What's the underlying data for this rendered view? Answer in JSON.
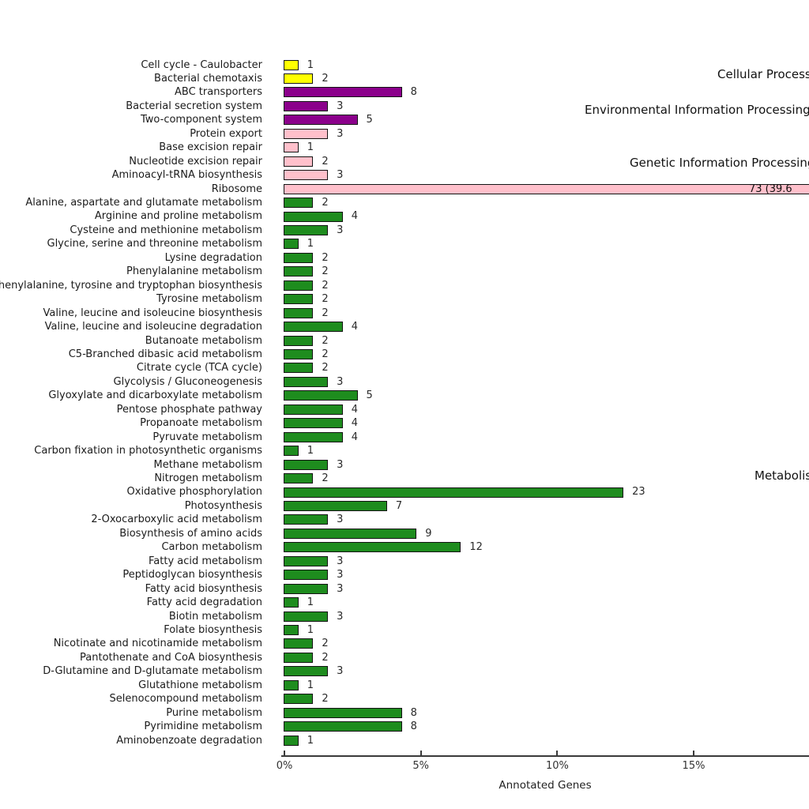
{
  "chart_data": {
    "type": "bar",
    "orientation": "horizontal",
    "title": "",
    "xlabel": "Annotated Genes",
    "x_ticks": [
      "0%",
      "5%",
      "10%",
      "15%"
    ],
    "x_tick_values": [
      0,
      5,
      10,
      15
    ],
    "xlim_visible": [
      0,
      18.6
    ],
    "grid": false,
    "legend_position": "right-edge-clipped",
    "groups": [
      {
        "name": "Cellular Processes",
        "color": "#FFFF00"
      },
      {
        "name": "Environmental Information Processing",
        "color": "#8B008B"
      },
      {
        "name": "Genetic Information Processing",
        "color": "#FFC0CB"
      },
      {
        "name": "Metabolism",
        "color": "#1E8C1E"
      }
    ],
    "rows": [
      {
        "label": "Cell cycle - Caulobacter",
        "count": 1,
        "group": 0
      },
      {
        "label": "Bacterial chemotaxis",
        "count": 2,
        "group": 0
      },
      {
        "label": "ABC transporters",
        "count": 8,
        "group": 1
      },
      {
        "label": "Bacterial secretion system",
        "count": 3,
        "group": 1
      },
      {
        "label": "Two-component system",
        "count": 5,
        "group": 1
      },
      {
        "label": "Protein export",
        "count": 3,
        "group": 2
      },
      {
        "label": "Base excision repair",
        "count": 1,
        "group": 2
      },
      {
        "label": "Nucleotide excision repair",
        "count": 2,
        "group": 2
      },
      {
        "label": "Aminoacyl-tRNA biosynthesis",
        "count": 3,
        "group": 2
      },
      {
        "label": "Ribosome",
        "count": 73,
        "group": 2,
        "value_label": "73 (39.6"
      },
      {
        "label": "Alanine, aspartate and glutamate metabolism",
        "count": 2,
        "group": 3
      },
      {
        "label": "Arginine and proline metabolism",
        "count": 4,
        "group": 3
      },
      {
        "label": "Cysteine and methionine metabolism",
        "count": 3,
        "group": 3
      },
      {
        "label": "Glycine, serine and threonine metabolism",
        "count": 1,
        "group": 3
      },
      {
        "label": "Lysine degradation",
        "count": 2,
        "group": 3
      },
      {
        "label": "Phenylalanine metabolism",
        "count": 2,
        "group": 3
      },
      {
        "label": "Phenylalanine, tyrosine and tryptophan biosynthesis",
        "count": 2,
        "group": 3
      },
      {
        "label": "Tyrosine metabolism",
        "count": 2,
        "group": 3
      },
      {
        "label": "Valine, leucine and isoleucine biosynthesis",
        "count": 2,
        "group": 3
      },
      {
        "label": "Valine, leucine and isoleucine degradation",
        "count": 4,
        "group": 3
      },
      {
        "label": "Butanoate metabolism",
        "count": 2,
        "group": 3
      },
      {
        "label": "C5-Branched dibasic acid metabolism",
        "count": 2,
        "group": 3
      },
      {
        "label": "Citrate cycle (TCA cycle)",
        "count": 2,
        "group": 3
      },
      {
        "label": "Glycolysis / Gluconeogenesis",
        "count": 3,
        "group": 3
      },
      {
        "label": "Glyoxylate and dicarboxylate metabolism",
        "count": 5,
        "group": 3
      },
      {
        "label": "Pentose phosphate pathway",
        "count": 4,
        "group": 3
      },
      {
        "label": "Propanoate metabolism",
        "count": 4,
        "group": 3
      },
      {
        "label": "Pyruvate metabolism",
        "count": 4,
        "group": 3
      },
      {
        "label": "Carbon fixation in photosynthetic organisms",
        "count": 1,
        "group": 3
      },
      {
        "label": "Methane metabolism",
        "count": 3,
        "group": 3
      },
      {
        "label": "Nitrogen metabolism",
        "count": 2,
        "group": 3
      },
      {
        "label": "Oxidative phosphorylation",
        "count": 23,
        "group": 3
      },
      {
        "label": "Photosynthesis",
        "count": 7,
        "group": 3
      },
      {
        "label": "2-Oxocarboxylic acid metabolism",
        "count": 3,
        "group": 3
      },
      {
        "label": "Biosynthesis of amino acids",
        "count": 9,
        "group": 3
      },
      {
        "label": "Carbon metabolism",
        "count": 12,
        "group": 3
      },
      {
        "label": "Fatty acid metabolism",
        "count": 3,
        "group": 3
      },
      {
        "label": "Peptidoglycan biosynthesis",
        "count": 3,
        "group": 3
      },
      {
        "label": "Fatty acid biosynthesis",
        "count": 3,
        "group": 3
      },
      {
        "label": "Fatty acid degradation",
        "count": 1,
        "group": 3
      },
      {
        "label": "Biotin metabolism",
        "count": 3,
        "group": 3
      },
      {
        "label": "Folate biosynthesis",
        "count": 1,
        "group": 3
      },
      {
        "label": "Nicotinate and nicotinamide metabolism",
        "count": 2,
        "group": 3
      },
      {
        "label": "Pantothenate and CoA biosynthesis",
        "count": 2,
        "group": 3
      },
      {
        "label": "D-Glutamine and D-glutamate metabolism",
        "count": 3,
        "group": 3
      },
      {
        "label": "Glutathione metabolism",
        "count": 1,
        "group": 3
      },
      {
        "label": "Selenocompound metabolism",
        "count": 2,
        "group": 3
      },
      {
        "label": "Purine metabolism",
        "count": 8,
        "group": 3
      },
      {
        "label": "Pyrimidine metabolism",
        "count": 8,
        "group": 3
      },
      {
        "label": "Aminobenzoate degradation",
        "count": 1,
        "group": 3
      }
    ]
  }
}
